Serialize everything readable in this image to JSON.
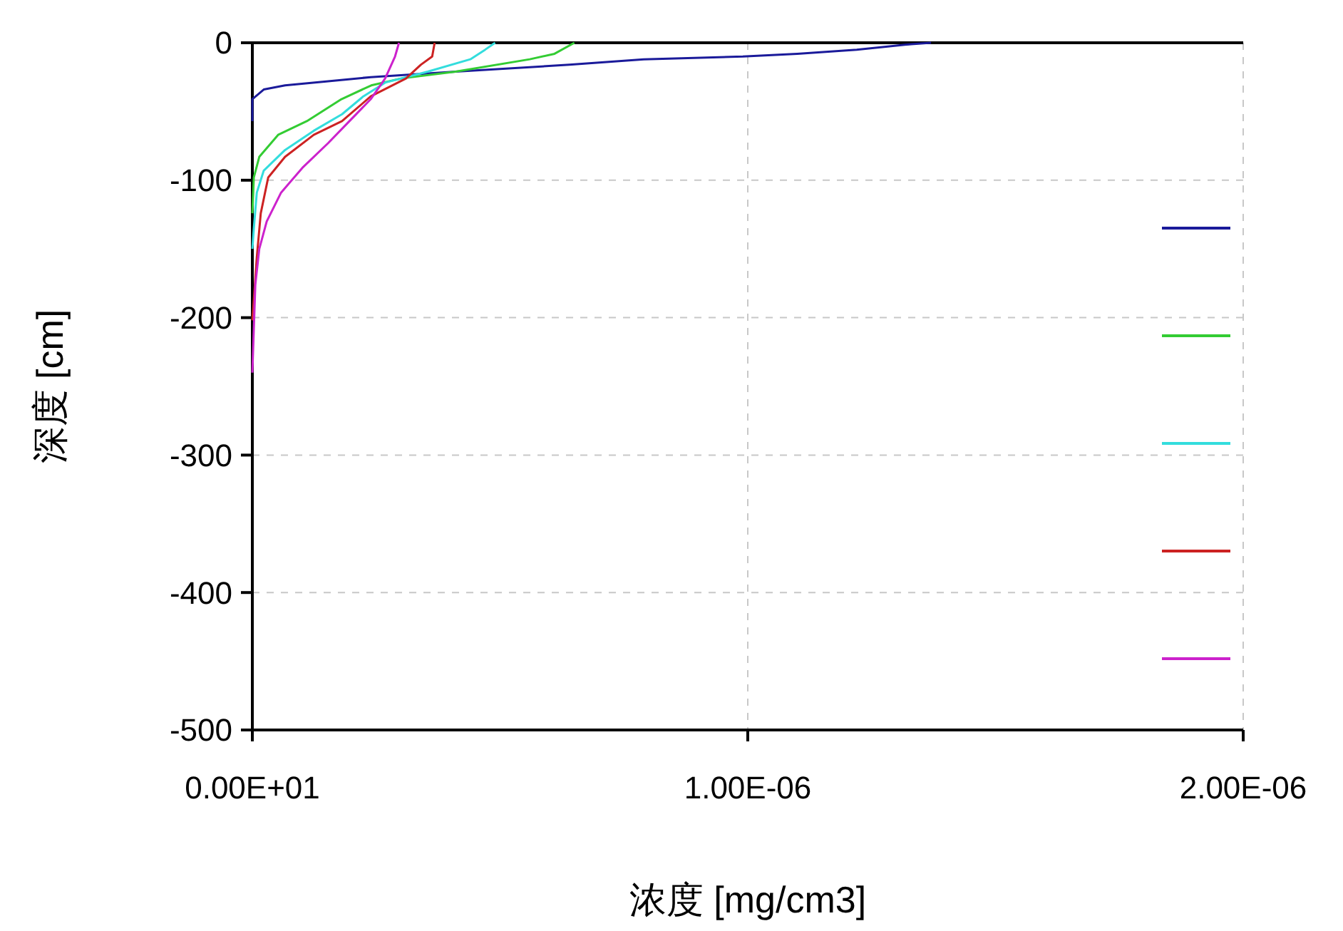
{
  "chart_data": {
    "type": "line",
    "xlabel": "浓度 [mg/cm3]",
    "ylabel": "深度 [cm]",
    "xlim": [
      0,
      2e-06
    ],
    "xticks": [
      {
        "value": 0,
        "label": "0.00E+01"
      },
      {
        "value": 1e-06,
        "label": "1.00E-06"
      },
      {
        "value": 2e-06,
        "label": "2.00E-06"
      }
    ],
    "ylim": [
      -500,
      0
    ],
    "yticks": [
      0,
      -100,
      -200,
      -300,
      -400,
      -500
    ],
    "grid": true,
    "series": [
      {
        "color": "#1a1a9a",
        "x": [
          1.37e-06,
          1.33e-06,
          1.22e-06,
          1.1e-06,
          9.9e-07,
          7.9e-07,
          6.4e-07,
          4.1e-07,
          2.39e-07,
          1.53e-07,
          6.6e-08,
          2.3e-08,
          0,
          0
        ],
        "values": [
          0,
          -1,
          -5,
          -8,
          -10,
          -12,
          -16,
          -21,
          -25,
          -28,
          -31,
          -34,
          -41,
          -57
        ]
      },
      {
        "color": "#33cc33",
        "x": [
          6.5e-07,
          6.1e-07,
          5.6e-07,
          4.1e-07,
          3e-07,
          2.4e-07,
          1.8e-07,
          1.1e-07,
          5.2e-08,
          1.4e-08,
          3e-09,
          0
        ],
        "values": [
          0,
          -8,
          -12,
          -21,
          -26,
          -31,
          -41,
          -57,
          -67,
          -83,
          -98,
          -124
        ]
      },
      {
        "color": "#33dddd",
        "x": [
          4.9e-07,
          4.7e-07,
          4.4e-07,
          3.54e-07,
          2.68e-07,
          2.24e-07,
          1.81e-07,
          1.24e-07,
          6.6e-08,
          2.3e-08,
          9e-09,
          3e-09,
          0
        ],
        "values": [
          0,
          -5,
          -12,
          -21,
          -29,
          -39,
          -52,
          -64,
          -78,
          -93,
          -109,
          -135,
          -150
        ]
      },
      {
        "color": "#cc2222",
        "x": [
          3.68e-07,
          3.63e-07,
          3.4e-07,
          3.1e-07,
          2.39e-07,
          1.81e-07,
          1.24e-07,
          6.6e-08,
          3.2e-08,
          1.7e-08,
          9e-09,
          3e-09,
          0
        ],
        "values": [
          0,
          -10,
          -16,
          -26,
          -39,
          -57,
          -67,
          -83,
          -98,
          -124,
          -156,
          -187,
          -202
        ]
      },
      {
        "color": "#cc22cc",
        "x": [
          2.96e-07,
          2.88e-07,
          2.68e-07,
          2.39e-07,
          1.96e-07,
          1.53e-07,
          1.01e-07,
          5.8e-08,
          2.9e-08,
          1.4e-08,
          6e-09,
          0
        ],
        "values": [
          0,
          -10,
          -26,
          -41,
          -57,
          -73,
          -91,
          -109,
          -130,
          -150,
          -176,
          -240
        ]
      }
    ]
  }
}
